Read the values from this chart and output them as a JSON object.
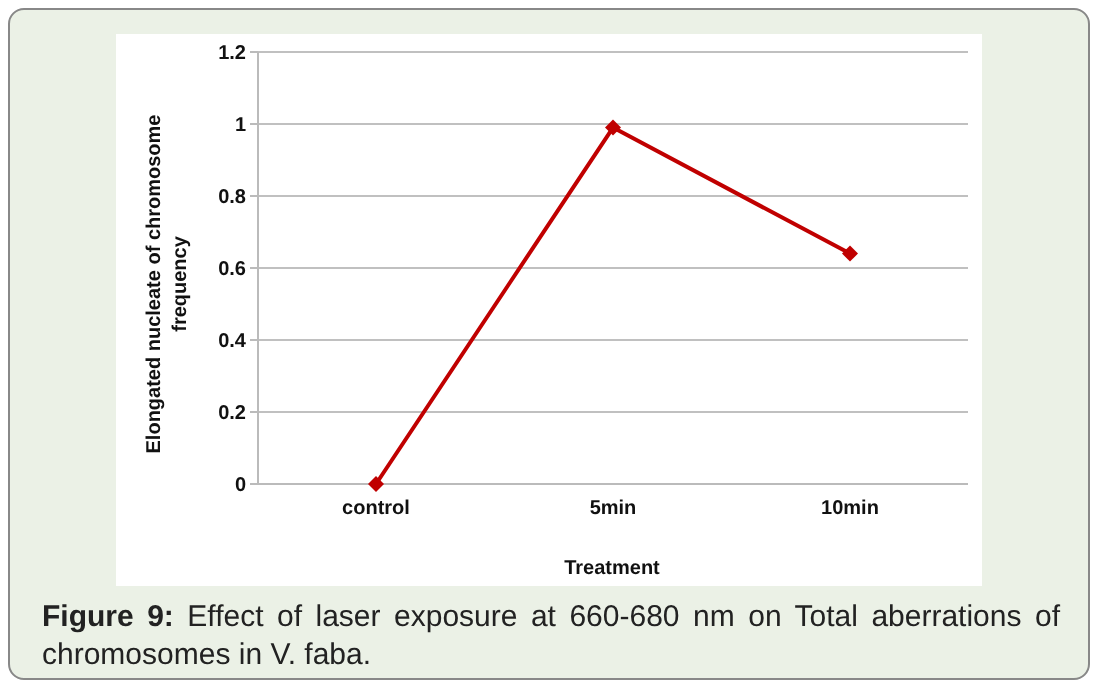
{
  "chart_data": {
    "type": "line",
    "xlabel": "Treatment",
    "ylabel": "Elongated nucleate of chromosome frequency",
    "categories": [
      "control",
      "5min",
      "10min"
    ],
    "series": [
      {
        "color": "#c00000",
        "values": [
          0,
          0.99,
          0.64
        ]
      }
    ],
    "ylim": [
      0,
      1.2
    ],
    "yticks": [
      0,
      0.2,
      0.4,
      0.6,
      0.8,
      1,
      1.2
    ],
    "grid": "y",
    "marker": "diamond",
    "line_style": "solid",
    "legend": false,
    "annotations": [
      "Figure 9: Effect of laser exposure at 660-680 nm on Total aberrations of chromosomes in V. faba."
    ]
  }
}
